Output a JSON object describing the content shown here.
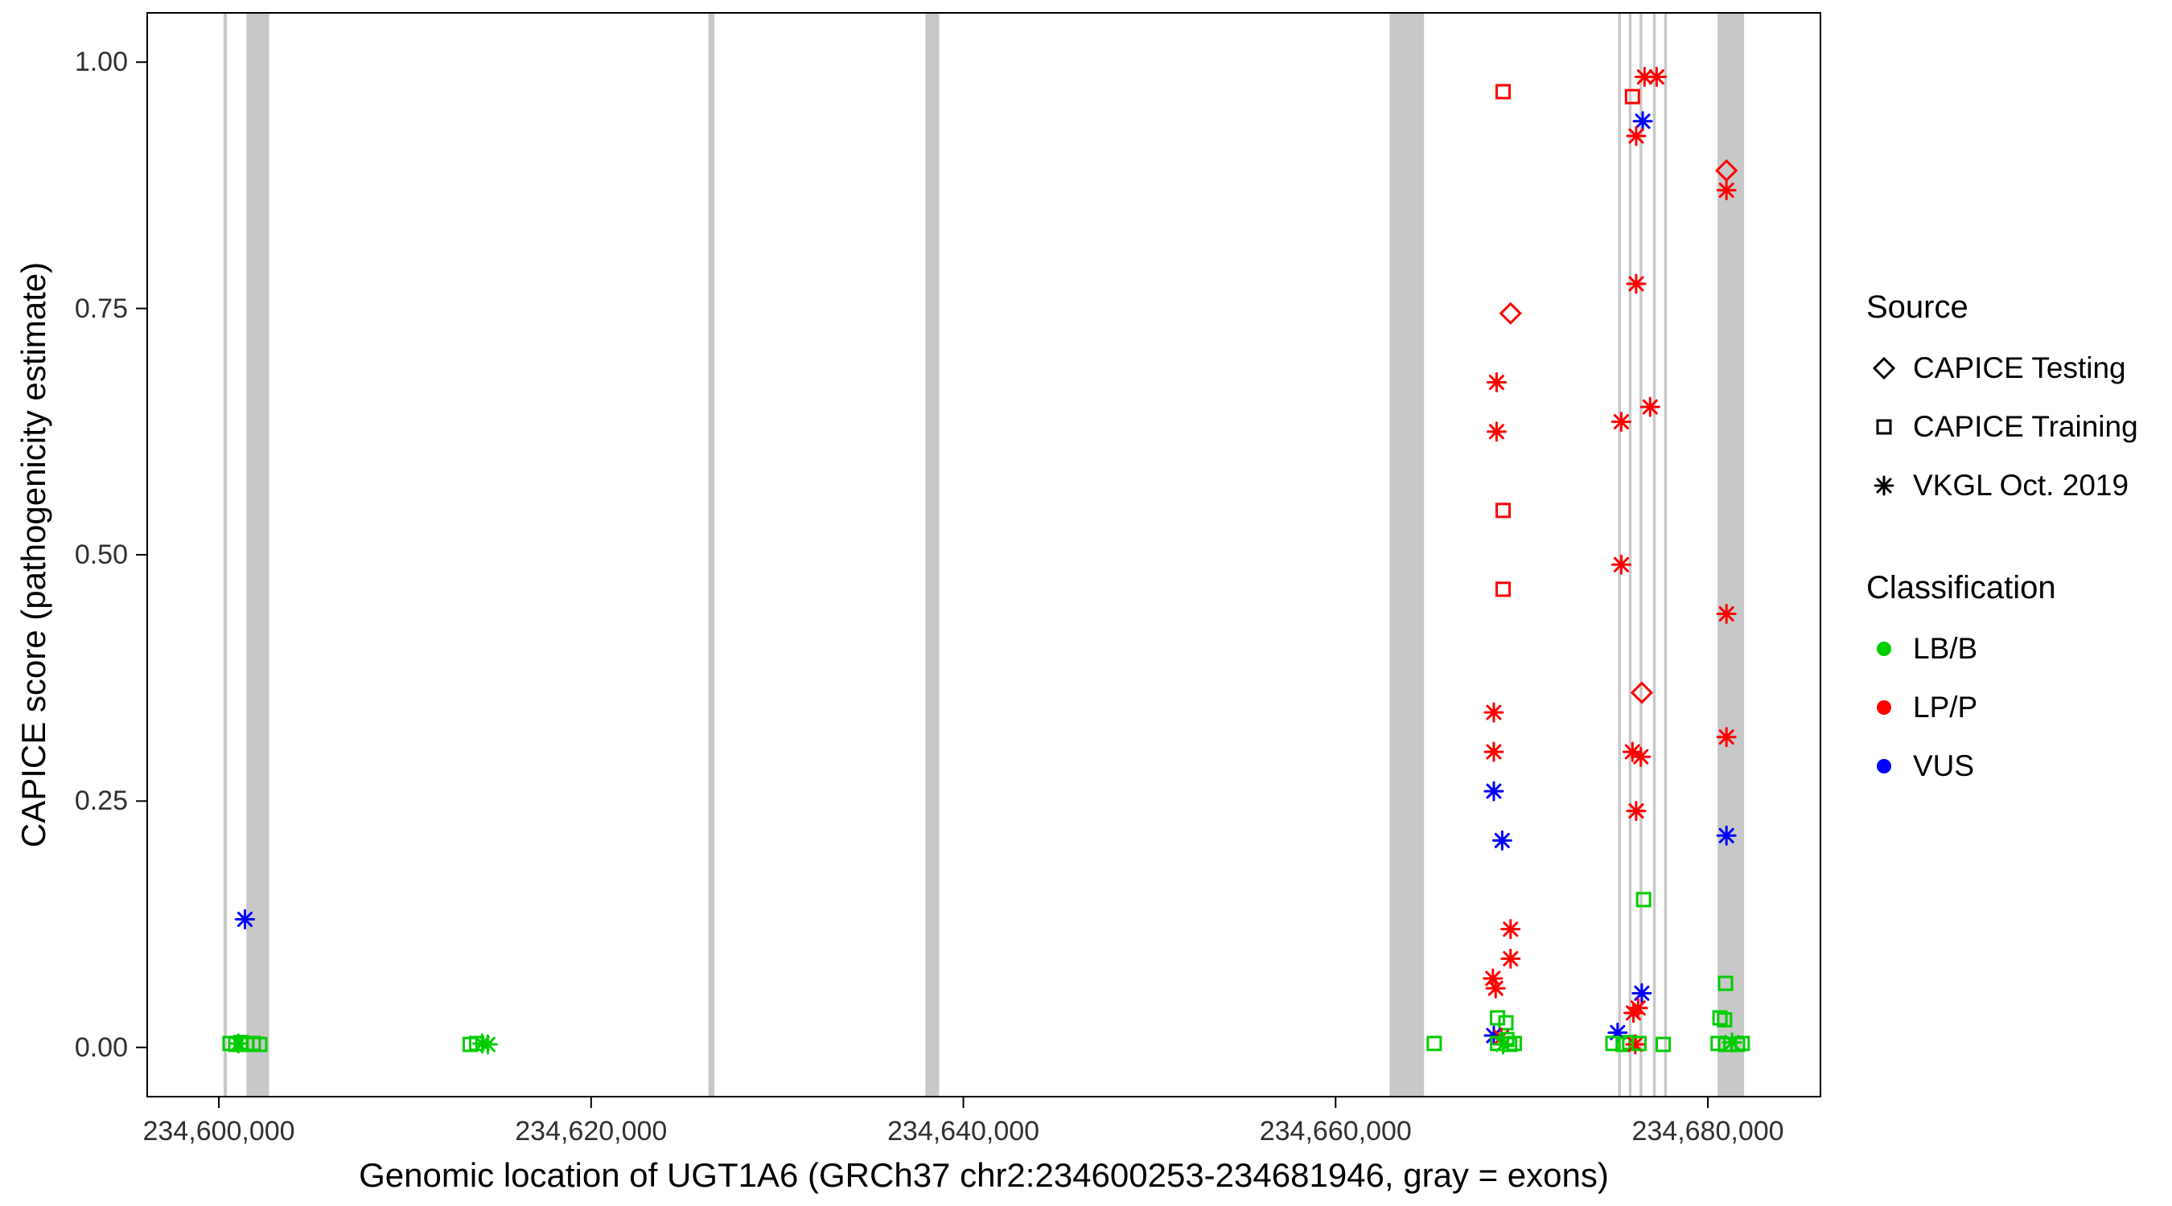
{
  "legend": {
    "source_title": "Source",
    "classification_title": "Classification"
  },
  "chart_data": {
    "type": "scatter",
    "title": "",
    "xlabel": "Genomic location of UGT1A6 (GRCh37 chr2:234600253-234681946, gray = exons)",
    "ylabel": "CAPICE score (pathogenicity estimate)",
    "xlim": [
      234596150,
      234686050
    ],
    "ylim": [
      -0.05,
      1.05
    ],
    "grid": "off",
    "legend_position": "right",
    "x_ticks": [
      {
        "value": 234600000,
        "label": "234,600,000"
      },
      {
        "value": 234620000,
        "label": "234,620,000"
      },
      {
        "value": 234640000,
        "label": "234,640,000"
      },
      {
        "value": 234660000,
        "label": "234,660,000"
      },
      {
        "value": 234680000,
        "label": "234,680,000"
      }
    ],
    "y_ticks": [
      {
        "value": 0.0,
        "label": "0.00"
      },
      {
        "value": 0.25,
        "label": "0.25"
      },
      {
        "value": 0.5,
        "label": "0.50"
      },
      {
        "value": 0.75,
        "label": "0.75"
      },
      {
        "value": 1.0,
        "label": "1.00"
      }
    ],
    "exon_color": "#C8C8C8",
    "exons": [
      [
        234600253,
        234600430
      ],
      [
        234601480,
        234602700
      ],
      [
        234626300,
        234626620
      ],
      [
        234637960,
        234638700
      ],
      [
        234662900,
        234664750
      ],
      [
        234675180,
        234675330
      ],
      [
        234675750,
        234675900
      ],
      [
        234676330,
        234676480
      ],
      [
        234677050,
        234677200
      ],
      [
        234677650,
        234677800
      ],
      [
        234680520,
        234681946
      ]
    ],
    "sources": {
      "T": {
        "label": "CAPICE Testing",
        "shape": "diamond"
      },
      "R": {
        "label": "CAPICE Training",
        "shape": "square"
      },
      "V": {
        "label": "VKGL Oct. 2019",
        "shape": "asterisk"
      }
    },
    "classifications": {
      "B": {
        "label": "LB/B",
        "color": "#00CD00"
      },
      "P": {
        "label": "LP/P",
        "color": "#FF0000"
      },
      "U": {
        "label": "VUS",
        "color": "#0000FF"
      }
    },
    "point_fields": [
      "x",
      "y",
      "source_code",
      "classification_code"
    ],
    "points": [
      [
        234600600,
        0.004,
        "R",
        "B"
      ],
      [
        234600900,
        0.003,
        "R",
        "B"
      ],
      [
        234601200,
        0.005,
        "R",
        "B"
      ],
      [
        234601500,
        0.003,
        "R",
        "B"
      ],
      [
        234601850,
        0.004,
        "R",
        "B"
      ],
      [
        234602200,
        0.003,
        "R",
        "B"
      ],
      [
        234601050,
        0.004,
        "V",
        "B"
      ],
      [
        234601400,
        0.13,
        "V",
        "U"
      ],
      [
        234613500,
        0.003,
        "R",
        "B"
      ],
      [
        234613850,
        0.004,
        "R",
        "B"
      ],
      [
        234614150,
        0.004,
        "V",
        "B"
      ],
      [
        234614450,
        0.003,
        "V",
        "B"
      ],
      [
        234665300,
        0.004,
        "R",
        "B"
      ],
      [
        234669000,
        0.97,
        "R",
        "P"
      ],
      [
        234669400,
        0.745,
        "T",
        "P"
      ],
      [
        234668650,
        0.675,
        "V",
        "P"
      ],
      [
        234668650,
        0.625,
        "V",
        "P"
      ],
      [
        234669000,
        0.545,
        "R",
        "P"
      ],
      [
        234669000,
        0.465,
        "R",
        "P"
      ],
      [
        234668500,
        0.34,
        "V",
        "P"
      ],
      [
        234668500,
        0.3,
        "V",
        "P"
      ],
      [
        234668500,
        0.26,
        "V",
        "U"
      ],
      [
        234668950,
        0.21,
        "V",
        "U"
      ],
      [
        234669400,
        0.12,
        "V",
        "P"
      ],
      [
        234669400,
        0.09,
        "V",
        "P"
      ],
      [
        234668450,
        0.07,
        "V",
        "P"
      ],
      [
        234668600,
        0.06,
        "V",
        "P"
      ],
      [
        234668700,
        0.03,
        "R",
        "B"
      ],
      [
        234669150,
        0.025,
        "R",
        "B"
      ],
      [
        234668500,
        0.012,
        "V",
        "U"
      ],
      [
        234668900,
        0.01,
        "V",
        "P"
      ],
      [
        234669200,
        0.008,
        "R",
        "B"
      ],
      [
        234668700,
        0.004,
        "R",
        "B"
      ],
      [
        234669000,
        0.003,
        "V",
        "B"
      ],
      [
        234669350,
        0.003,
        "R",
        "B"
      ],
      [
        234669600,
        0.004,
        "R",
        "B"
      ],
      [
        234676600,
        0.985,
        "V",
        "P"
      ],
      [
        234677250,
        0.985,
        "V",
        "P"
      ],
      [
        234675950,
        0.965,
        "R",
        "P"
      ],
      [
        234676500,
        0.94,
        "V",
        "U"
      ],
      [
        234676150,
        0.925,
        "V",
        "P"
      ],
      [
        234676150,
        0.775,
        "V",
        "P"
      ],
      [
        234676900,
        0.65,
        "V",
        "P"
      ],
      [
        234675350,
        0.635,
        "V",
        "P"
      ],
      [
        234675350,
        0.49,
        "V",
        "P"
      ],
      [
        234676450,
        0.36,
        "T",
        "P"
      ],
      [
        234675950,
        0.3,
        "V",
        "P"
      ],
      [
        234676400,
        0.295,
        "V",
        "P"
      ],
      [
        234676150,
        0.24,
        "V",
        "P"
      ],
      [
        234676550,
        0.15,
        "R",
        "B"
      ],
      [
        234676450,
        0.055,
        "V",
        "U"
      ],
      [
        234676250,
        0.04,
        "V",
        "P"
      ],
      [
        234676000,
        0.035,
        "V",
        "P"
      ],
      [
        234675150,
        0.015,
        "V",
        "U"
      ],
      [
        234674900,
        0.004,
        "R",
        "B"
      ],
      [
        234675450,
        0.003,
        "R",
        "B"
      ],
      [
        234675800,
        0.005,
        "R",
        "B"
      ],
      [
        234676100,
        0.003,
        "V",
        "P"
      ],
      [
        234676300,
        0.004,
        "R",
        "B"
      ],
      [
        234677600,
        0.003,
        "R",
        "B"
      ],
      [
        234681000,
        0.89,
        "T",
        "P"
      ],
      [
        234681000,
        0.87,
        "V",
        "P"
      ],
      [
        234681000,
        0.44,
        "V",
        "P"
      ],
      [
        234681000,
        0.315,
        "V",
        "P"
      ],
      [
        234681000,
        0.215,
        "V",
        "U"
      ],
      [
        234680950,
        0.065,
        "R",
        "B"
      ],
      [
        234680650,
        0.03,
        "R",
        "B"
      ],
      [
        234680900,
        0.028,
        "R",
        "B"
      ],
      [
        234680550,
        0.004,
        "R",
        "B"
      ],
      [
        234680950,
        0.003,
        "R",
        "B"
      ],
      [
        234681300,
        0.005,
        "V",
        "B"
      ],
      [
        234681600,
        0.003,
        "R",
        "B"
      ],
      [
        234681850,
        0.004,
        "R",
        "B"
      ]
    ]
  }
}
